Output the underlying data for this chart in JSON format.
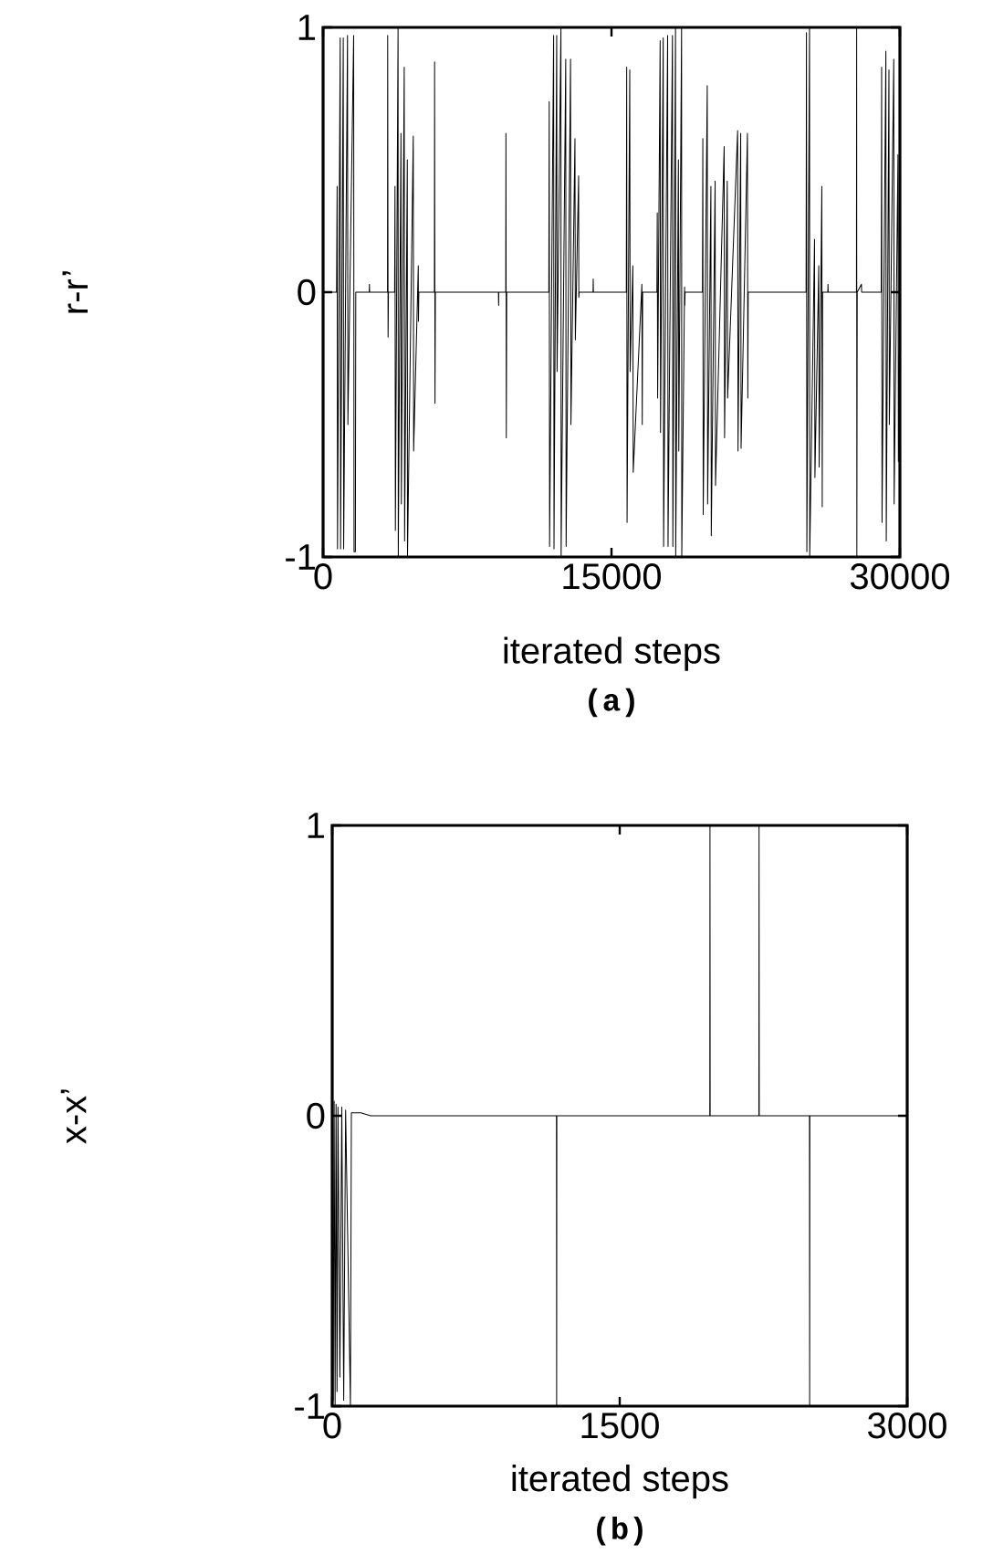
{
  "chart_data": [
    {
      "type": "line",
      "xlabel": "iterated steps",
      "ylabel": "r-r’",
      "color": "#000000",
      "marker": "none",
      "xlim": [
        0,
        30000
      ],
      "ylim": [
        -1,
        1
      ],
      "xticks": [
        0,
        15000,
        30000
      ],
      "yticks": [
        -1,
        0,
        1
      ],
      "x": [
        0,
        700,
        730,
        750,
        890,
        910,
        1050,
        1070,
        1270,
        1290,
        1590,
        1610,
        1680,
        1700,
        2400,
        2410,
        2420,
        3350,
        3360,
        3380,
        3400,
        3720,
        3740,
        3760,
        3900,
        3910,
        4050,
        4070,
        4220,
        4240,
        4380,
        4390,
        4690,
        4710,
        4950,
        4960,
        4980,
        5790,
        5800,
        5820,
        5840,
        9120,
        9130,
        9140,
        9500,
        9510,
        9530,
        9550,
        11740,
        11760,
        11780,
        11990,
        12010,
        12150,
        12170,
        12370,
        12380,
        12620,
        12640,
        12870,
        12890,
        13100,
        13120,
        13290,
        13300,
        13320,
        14040,
        14050,
        14060,
        15770,
        15790,
        15810,
        15950,
        15970,
        16110,
        16130,
        16580,
        16600,
        16620,
        17360,
        17380,
        17400,
        17530,
        17550,
        17690,
        17710,
        17920,
        17940,
        18170,
        18190,
        18330,
        18340,
        18480,
        18500,
        18645,
        18655,
        18800,
        18810,
        18830,
        19730,
        19750,
        19770,
        19980,
        20000,
        20170,
        20190,
        20390,
        20410,
        20860,
        20880,
        21020,
        21040,
        21560,
        21580,
        21720,
        21740,
        22070,
        22090,
        22110,
        25120,
        25140,
        25160,
        25300,
        25310,
        25560,
        25580,
        25780,
        25800,
        25940,
        25960,
        25980,
        26250,
        26260,
        26270,
        27740,
        27750,
        27760,
        27780,
        28000,
        28010,
        29030,
        29050,
        29070,
        29270,
        29290,
        29430,
        29450,
        29680,
        29700,
        29900,
        29920,
        30000
      ],
      "values": [
        0,
        0,
        0.4,
        -0.97,
        0.96,
        -0.97,
        0.96,
        -0.97,
        0.97,
        -0.5,
        0.97,
        -0.98,
        -0.98,
        0,
        0,
        0.03,
        0,
        0,
        0.97,
        -0.17,
        0,
        0,
        0.4,
        -0.9,
        1,
        -1,
        0.6,
        -0.8,
        0.85,
        -0.94,
        0.5,
        -1,
        0.59,
        -0.6,
        0.1,
        -0.11,
        0,
        0,
        0.87,
        -0.42,
        0,
        0,
        -0.05,
        0,
        0,
        0.6,
        -0.55,
        0,
        0,
        0.72,
        -0.96,
        0.97,
        -0.97,
        0.97,
        -0.3,
        1,
        -1,
        0.88,
        -0.96,
        0.88,
        -0.5,
        0.58,
        -0.18,
        0.44,
        -0.02,
        0,
        0,
        0.05,
        0,
        0,
        0.85,
        -0.87,
        0.84,
        -0.3,
        0.1,
        -0.68,
        0.03,
        -0.5,
        0,
        0,
        0.3,
        -0.4,
        0.95,
        -0.53,
        0.96,
        -0.96,
        0.97,
        -0.96,
        0.97,
        -0.96,
        1,
        -1,
        0.5,
        -0.6,
        1,
        -1,
        0.02,
        -0.05,
        0,
        0,
        0.58,
        -0.84,
        0.78,
        -0.8,
        0.4,
        -0.92,
        0.42,
        -0.73,
        0.55,
        -0.55,
        0.42,
        -0.4,
        0.61,
        -0.6,
        0.6,
        -0.59,
        0.6,
        -0.4,
        0,
        0,
        0.98,
        -0.98,
        1,
        -1,
        0.2,
        -0.7,
        0.1,
        -0.66,
        0.4,
        -0.81,
        0,
        0,
        0.03,
        0,
        0,
        1,
        -1,
        0,
        0.03,
        0,
        0,
        0.85,
        -0.87,
        0.91,
        -0.94,
        0.84,
        -0.5,
        0.88,
        -0.8,
        0.52,
        -0.64,
        0
      ],
      "annotations": [
        "(a)"
      ]
    },
    {
      "type": "line",
      "xlabel": "iterated steps",
      "ylabel": "x-x’",
      "color": "#000000",
      "marker": "none",
      "xlim": [
        0,
        3000
      ],
      "ylim": [
        -1,
        1
      ],
      "xticks": [
        0,
        1500,
        3000
      ],
      "yticks": [
        -1,
        0,
        1
      ],
      "x": [
        0,
        5,
        10,
        15,
        20,
        25,
        30,
        40,
        50,
        60,
        70,
        95,
        100,
        150,
        200,
        1170,
        1171,
        1172,
        1970,
        1971,
        1972,
        2226,
        2227,
        2228,
        2490,
        2491,
        2492,
        3000
      ],
      "values": [
        0,
        -0.98,
        0.05,
        -1,
        0.04,
        -0.95,
        0.03,
        -0.9,
        0.03,
        -0.98,
        0.02,
        -1,
        0.01,
        0.01,
        0,
        0,
        -1,
        0,
        0,
        1,
        0,
        0,
        1,
        0,
        0,
        -1,
        0,
        0
      ],
      "annotations": [
        "(b)"
      ]
    }
  ]
}
